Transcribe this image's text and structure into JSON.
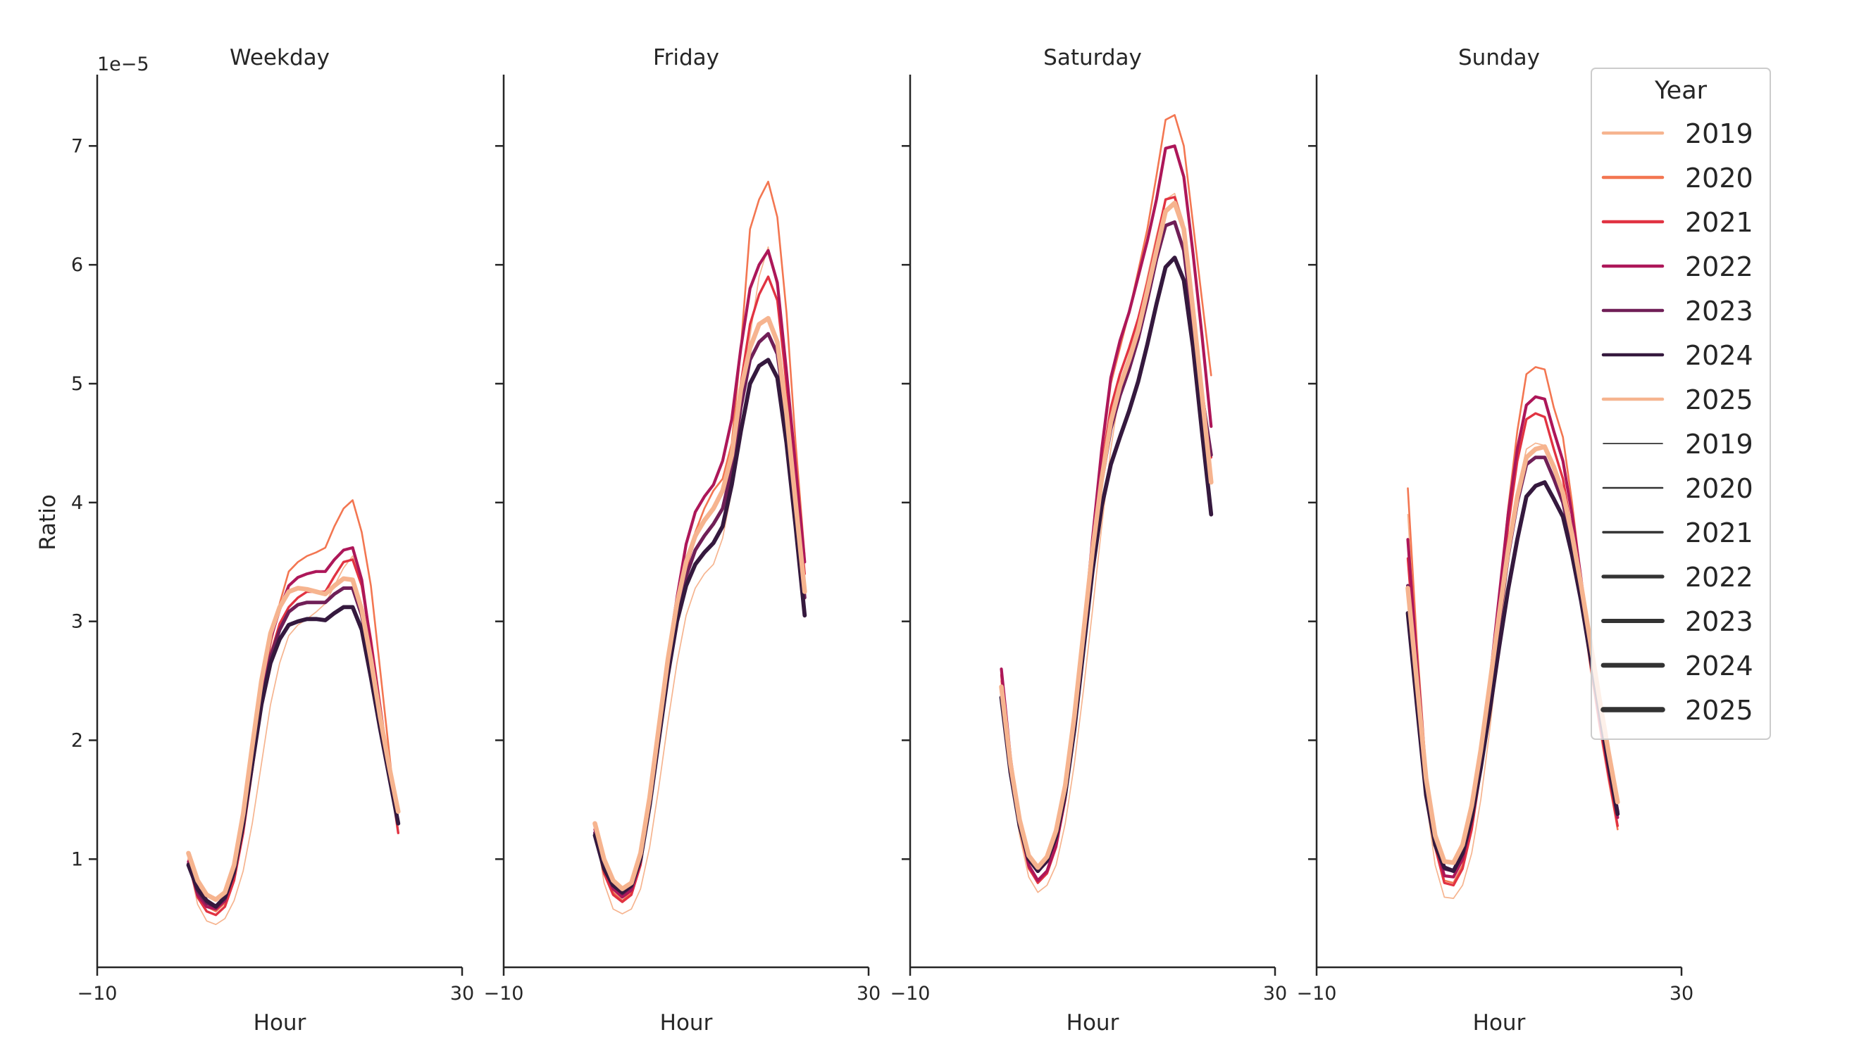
{
  "chart_data": {
    "type": "line",
    "xlabel": "Hour",
    "ylabel": "Ratio",
    "y_offset_text": "1e−5",
    "xlim": [
      -10,
      30
    ],
    "ylim": [
      0.09,
      7.6
    ],
    "xticks": [
      -10,
      30
    ],
    "yticks": [
      1,
      2,
      3,
      4,
      5,
      6,
      7
    ],
    "grid": false,
    "legend_placement": "top-right",
    "x": [
      0,
      1,
      2,
      3,
      4,
      5,
      6,
      7,
      8,
      9,
      10,
      11,
      12,
      13,
      14,
      15,
      16,
      17,
      18,
      19,
      20,
      21,
      22,
      23
    ],
    "years": [
      "2019",
      "2020",
      "2021",
      "2022",
      "2023",
      "2024",
      "2025"
    ],
    "colors": {
      "2019": "#f6b48f",
      "2020": "#f37651",
      "2021": "#e13342",
      "2022": "#ad1759",
      "2023": "#701f57",
      "2024": "#35193e",
      "2025": "#f6b48f"
    },
    "panels": [
      {
        "title": "Weekday",
        "series": [
          {
            "name": "2019",
            "values": [
              0.98,
              0.62,
              0.48,
              0.45,
              0.5,
              0.65,
              0.9,
              1.3,
              1.8,
              2.3,
              2.65,
              2.88,
              2.97,
              3.02,
              3.08,
              3.15,
              3.3,
              3.45,
              3.55,
              3.3,
              2.8,
              2.25,
              1.75,
              1.3
            ]
          },
          {
            "name": "2020",
            "values": [
              1.0,
              0.72,
              0.6,
              0.56,
              0.63,
              0.85,
              1.25,
              1.8,
              2.35,
              2.8,
              3.15,
              3.42,
              3.5,
              3.55,
              3.58,
              3.62,
              3.8,
              3.95,
              4.02,
              3.75,
              3.3,
              2.6,
              1.9,
              1.22
            ]
          },
          {
            "name": "2021",
            "values": [
              0.97,
              0.68,
              0.56,
              0.53,
              0.6,
              0.82,
              1.22,
              1.75,
              2.3,
              2.72,
              2.98,
              3.12,
              3.2,
              3.25,
              3.25,
              3.25,
              3.38,
              3.5,
              3.52,
              3.3,
              2.85,
              2.3,
              1.75,
              1.22
            ]
          },
          {
            "name": "2022",
            "values": [
              0.98,
              0.7,
              0.6,
              0.58,
              0.65,
              0.88,
              1.3,
              1.85,
              2.4,
              2.85,
              3.1,
              3.3,
              3.37,
              3.4,
              3.42,
              3.42,
              3.52,
              3.6,
              3.62,
              3.35,
              2.8,
              2.25,
              1.75,
              1.3
            ]
          },
          {
            "name": "2023",
            "values": [
              0.96,
              0.73,
              0.63,
              0.6,
              0.67,
              0.88,
              1.28,
              1.8,
              2.3,
              2.7,
              2.93,
              3.08,
              3.14,
              3.16,
              3.16,
              3.16,
              3.23,
              3.28,
              3.28,
              3.05,
              2.62,
              2.15,
              1.72,
              1.3
            ]
          },
          {
            "name": "2024",
            "values": [
              0.95,
              0.75,
              0.65,
              0.6,
              0.68,
              0.9,
              1.3,
              1.8,
              2.3,
              2.65,
              2.85,
              2.97,
              3.0,
              3.02,
              3.02,
              3.01,
              3.07,
              3.12,
              3.12,
              2.93,
              2.53,
              2.1,
              1.7,
              1.3
            ]
          },
          {
            "name": "2025",
            "values": [
              1.05,
              0.82,
              0.7,
              0.66,
              0.72,
              0.95,
              1.38,
              1.95,
              2.5,
              2.9,
              3.12,
              3.25,
              3.28,
              3.27,
              3.25,
              3.23,
              3.3,
              3.36,
              3.35,
              3.1,
              2.68,
              2.2,
              1.78,
              1.4
            ]
          }
        ]
      },
      {
        "title": "Friday",
        "series": [
          {
            "name": "2019",
            "values": [
              1.28,
              0.8,
              0.58,
              0.54,
              0.58,
              0.75,
              1.1,
              1.6,
              2.15,
              2.65,
              3.05,
              3.28,
              3.4,
              3.48,
              3.7,
              4.1,
              4.8,
              5.4,
              5.9,
              6.15,
              5.8,
              4.9,
              4.0,
              3.3
            ]
          },
          {
            "name": "2020",
            "values": [
              1.25,
              0.9,
              0.72,
              0.65,
              0.72,
              0.95,
              1.45,
              2.05,
              2.65,
              3.1,
              3.5,
              3.75,
              3.95,
              4.1,
              4.2,
              4.5,
              5.3,
              6.3,
              6.55,
              6.7,
              6.4,
              5.6,
              4.5,
              3.55
            ]
          },
          {
            "name": "2021",
            "values": [
              1.22,
              0.88,
              0.7,
              0.64,
              0.7,
              0.95,
              1.45,
              2.05,
              2.62,
              3.08,
              3.45,
              3.7,
              3.85,
              3.95,
              4.1,
              4.4,
              5.0,
              5.5,
              5.75,
              5.9,
              5.7,
              5.0,
              4.2,
              3.4
            ]
          },
          {
            "name": "2022",
            "values": [
              1.25,
              0.92,
              0.75,
              0.68,
              0.74,
              0.98,
              1.5,
              2.1,
              2.7,
              3.2,
              3.65,
              3.92,
              4.05,
              4.15,
              4.35,
              4.7,
              5.3,
              5.8,
              6.0,
              6.12,
              5.85,
              5.1,
              4.3,
              3.5
            ]
          },
          {
            "name": "2023",
            "values": [
              1.22,
              0.94,
              0.78,
              0.71,
              0.77,
              1.0,
              1.47,
              2.02,
              2.58,
              3.05,
              3.38,
              3.6,
              3.72,
              3.82,
              3.95,
              4.28,
              4.8,
              5.2,
              5.35,
              5.42,
              5.25,
              4.7,
              3.95,
              3.2
            ]
          },
          {
            "name": "2024",
            "values": [
              1.2,
              0.92,
              0.78,
              0.72,
              0.78,
              1.0,
              1.45,
              2.0,
              2.55,
              3.0,
              3.3,
              3.48,
              3.58,
              3.66,
              3.8,
              4.15,
              4.6,
              5.0,
              5.15,
              5.2,
              5.05,
              4.5,
              3.8,
              3.05
            ]
          },
          {
            "name": "2025",
            "values": [
              1.3,
              1.0,
              0.82,
              0.75,
              0.8,
              1.05,
              1.52,
              2.1,
              2.68,
              3.15,
              3.5,
              3.72,
              3.85,
              3.95,
              4.1,
              4.4,
              4.95,
              5.3,
              5.5,
              5.55,
              5.35,
              4.75,
              4.0,
              3.25
            ]
          }
        ]
      },
      {
        "title": "Saturday",
        "series": [
          {
            "name": "2019",
            "values": [
              2.4,
              1.7,
              1.2,
              0.85,
              0.72,
              0.78,
              0.95,
              1.3,
              1.8,
              2.42,
              3.1,
              3.8,
              4.45,
              4.95,
              5.25,
              5.55,
              5.9,
              6.25,
              6.55,
              6.6,
              6.35,
              5.7,
              5.0,
              4.4
            ]
          },
          {
            "name": "2020",
            "values": [
              2.5,
              1.78,
              1.25,
              0.92,
              0.8,
              0.88,
              1.1,
              1.5,
              2.1,
              2.85,
              3.65,
              4.4,
              5.0,
              5.3,
              5.6,
              5.95,
              6.3,
              6.75,
              7.22,
              7.26,
              7.0,
              6.35,
              5.7,
              5.07
            ]
          },
          {
            "name": "2021",
            "values": [
              2.55,
              1.8,
              1.27,
              0.93,
              0.8,
              0.88,
              1.1,
              1.5,
              2.08,
              2.82,
              3.6,
              4.3,
              4.8,
              5.08,
              5.3,
              5.55,
              5.85,
              6.2,
              6.55,
              6.57,
              6.3,
              5.6,
              4.95,
              4.38
            ]
          },
          {
            "name": "2022",
            "values": [
              2.6,
              1.85,
              1.3,
              0.95,
              0.82,
              0.9,
              1.12,
              1.52,
              2.12,
              2.88,
              3.7,
              4.45,
              5.05,
              5.36,
              5.6,
              5.9,
              6.2,
              6.55,
              6.98,
              7.0,
              6.74,
              6.1,
              5.4,
              4.64
            ]
          },
          {
            "name": "2023",
            "values": [
              2.45,
              1.78,
              1.3,
              1.0,
              0.9,
              0.98,
              1.2,
              1.58,
              2.15,
              2.85,
              3.58,
              4.18,
              4.62,
              4.9,
              5.12,
              5.38,
              5.7,
              6.05,
              6.33,
              6.36,
              6.12,
              5.5,
              4.9,
              4.4
            ]
          },
          {
            "name": "2024",
            "values": [
              2.36,
              1.73,
              1.28,
              1.0,
              0.9,
              0.99,
              1.19,
              1.55,
              2.09,
              2.76,
              3.43,
              3.97,
              4.32,
              4.55,
              4.77,
              5.02,
              5.33,
              5.67,
              5.98,
              6.06,
              5.87,
              5.31,
              4.59,
              3.9
            ]
          },
          {
            "name": "2025",
            "values": [
              2.45,
              1.8,
              1.33,
              1.03,
              0.93,
              1.02,
              1.24,
              1.62,
              2.2,
              2.9,
              3.6,
              4.2,
              4.68,
              4.98,
              5.2,
              5.45,
              5.78,
              6.12,
              6.45,
              6.52,
              6.3,
              5.62,
              4.9,
              4.17
            ]
          }
        ]
      },
      {
        "title": "Sunday",
        "series": [
          {
            "name": "2019",
            "values": [
              3.9,
              2.6,
              1.5,
              0.95,
              0.68,
              0.67,
              0.78,
              1.05,
              1.5,
              2.1,
              2.8,
              3.5,
              4.1,
              4.45,
              4.5,
              4.48,
              4.3,
              4.05,
              3.65,
              3.15,
              2.6,
              2.1,
              1.65,
              1.25
            ]
          },
          {
            "name": "2020",
            "values": [
              4.12,
              2.8,
              1.75,
              1.15,
              0.82,
              0.8,
              0.95,
              1.3,
              1.8,
              2.45,
              3.2,
              3.95,
              4.6,
              5.08,
              5.14,
              5.12,
              4.8,
              4.55,
              4.0,
              3.35,
              2.7,
              2.15,
              1.7,
              1.25
            ]
          },
          {
            "name": "2021",
            "values": [
              3.53,
              2.55,
              1.65,
              1.1,
              0.8,
              0.78,
              0.92,
              1.25,
              1.75,
              2.4,
              3.1,
              3.8,
              4.35,
              4.7,
              4.75,
              4.72,
              4.45,
              4.2,
              3.75,
              3.2,
              2.65,
              2.15,
              1.7,
              1.28
            ]
          },
          {
            "name": "2022",
            "values": [
              3.69,
              2.65,
              1.7,
              1.15,
              0.86,
              0.85,
              1.0,
              1.32,
              1.83,
              2.5,
              3.2,
              3.9,
              4.45,
              4.82,
              4.89,
              4.87,
              4.6,
              4.35,
              3.9,
              3.35,
              2.75,
              2.2,
              1.75,
              1.35
            ]
          },
          {
            "name": "2023",
            "values": [
              3.3,
              2.45,
              1.62,
              1.15,
              0.92,
              0.9,
              1.05,
              1.38,
              1.85,
              2.4,
              2.98,
              3.55,
              4.0,
              4.32,
              4.38,
              4.38,
              4.2,
              4.0,
              3.65,
              3.22,
              2.75,
              2.28,
              1.82,
              1.4
            ]
          },
          {
            "name": "2024",
            "values": [
              3.07,
              2.29,
              1.54,
              1.12,
              0.93,
              0.9,
              1.05,
              1.35,
              1.77,
              2.26,
              2.78,
              3.27,
              3.69,
              4.05,
              4.14,
              4.17,
              4.03,
              3.88,
              3.56,
              3.17,
              2.71,
              2.26,
              1.8,
              1.38
            ]
          },
          {
            "name": "2025",
            "values": [
              3.28,
              2.48,
              1.68,
              1.2,
              0.98,
              0.97,
              1.12,
              1.45,
              1.92,
              2.48,
              3.05,
              3.6,
              4.05,
              4.38,
              4.45,
              4.47,
              4.3,
              4.08,
              3.73,
              3.3,
              2.83,
              2.35,
              1.9,
              1.48
            ]
          }
        ]
      }
    ],
    "legend": {
      "title": "Year",
      "hue_entries": [
        "2019",
        "2020",
        "2021",
        "2022",
        "2023",
        "2024",
        "2025"
      ],
      "size_entries": [
        "2019",
        "2020",
        "2021",
        "2022",
        "2023",
        "2024",
        "2025"
      ],
      "size_color": "#333333"
    }
  }
}
